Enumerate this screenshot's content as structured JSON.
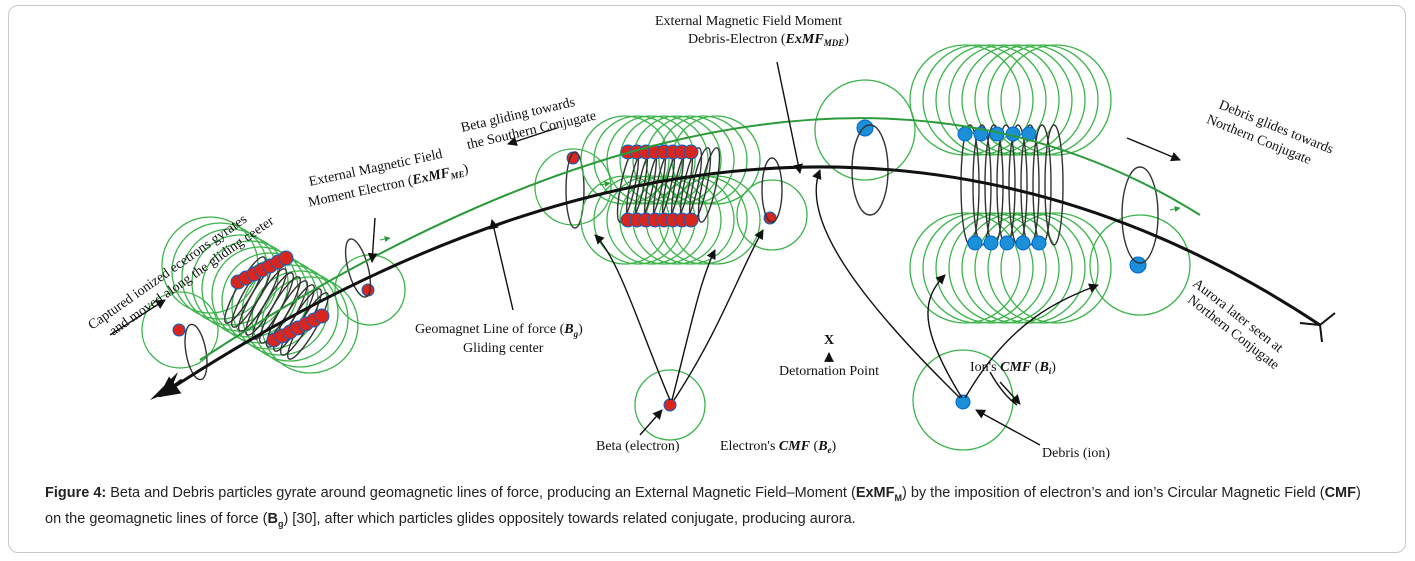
{
  "figure": {
    "captured": [
      "Captured ionized ecetrons gyrates",
      "and moved along the gliding ceeter"
    ],
    "exmf_me": {
      "line1": "External Magnetic Field",
      "line2": "Moment Electron (",
      "symbol": "ExMF",
      "sub": "ME",
      "close": ")"
    },
    "beta_gliding": [
      "Beta gliding towards",
      "the Southern Conjugate"
    ],
    "exmf_mde": {
      "line1": "External Magnetic Field Moment",
      "line2": "Debris-Electron (",
      "symbol": "ExMF",
      "sub": "MDE",
      "close": ")"
    },
    "debris_glides": [
      "Debris glides towards",
      "Northern Conjugate"
    ],
    "aurora": [
      "Aurora later seen at",
      "Northern Conjugate"
    ],
    "geomagnet": {
      "line1": "Geomagnet Line of force (",
      "symbol": "B",
      "sub": "g",
      "close": ")",
      "line2": "Gliding center"
    },
    "detonation": {
      "mark": "X",
      "label": "Detornation Point"
    },
    "ion_cmf": {
      "text": "Ion's ",
      "symbol": "CMF",
      "open": " (",
      "b": "B",
      "sub": "i",
      "close": ")"
    },
    "beta": "Beta (electron)",
    "electron_cmf": {
      "text": "Electron's ",
      "symbol": "CMF",
      "open": " (",
      "b": "B",
      "sub": "e",
      "close": ")"
    },
    "debris": "Debris (ion)"
  },
  "caption": {
    "label": "Figure 4:",
    "t1": " Beta and Debris particles gyrate around geomagnetic lines of force, producing an External Magnetic Field–Moment (",
    "b1": "ExMF",
    "s1": "M",
    "t2": ") by the imposition of electron’s and ion’s Circular Magnetic Field (",
    "b2": "CMF",
    "t3": ") on the geomagnetic lines of force (",
    "b3": "B",
    "s3": "g",
    "t4": ") [30], after which particles glides oppositely towards related conjugate, producing aurora."
  }
}
